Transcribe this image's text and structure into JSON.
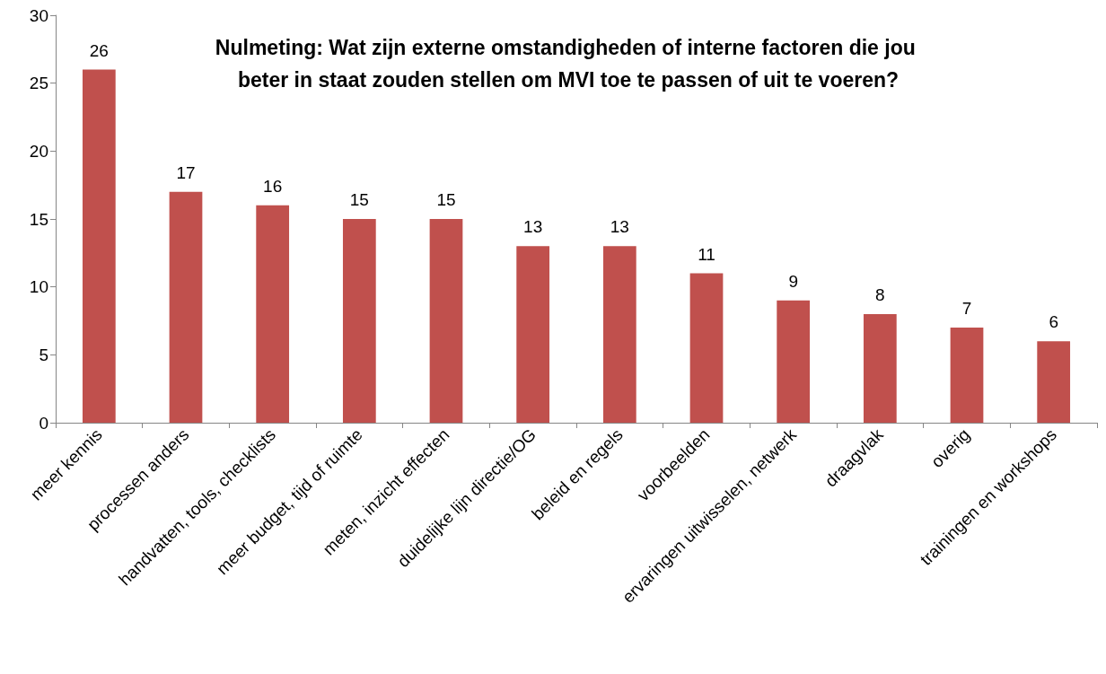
{
  "chart_data": {
    "type": "bar",
    "title": "Nulmeting: Wat zijn externe omstandigheden of interne factoren die jou beter in staat zouden stellen om MVI toe te passen of uit te voeren?",
    "categories": [
      "meer kennis",
      "processen anders",
      "handvatten, tools, checklists",
      "meer budget, tijd of ruimte",
      "meten, inzicht effecten",
      "duidelijke lijn directie/OG",
      "beleid en regels",
      "voorbeelden",
      "ervaringen uitwisselen, netwerk",
      "draagvlak",
      "overig",
      "trainingen en workshops"
    ],
    "values": [
      26,
      17,
      16,
      15,
      15,
      13,
      13,
      11,
      9,
      8,
      7,
      6
    ],
    "color": "#c0504d",
    "ylim": [
      0,
      30
    ],
    "yticks": [
      0,
      5,
      10,
      15,
      20,
      25,
      30
    ],
    "grid": false,
    "data_labels": true
  }
}
